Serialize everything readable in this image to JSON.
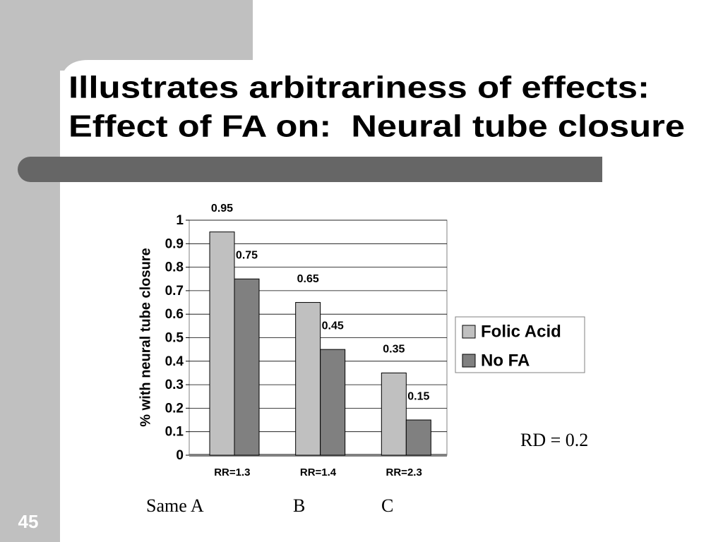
{
  "slide": {
    "title": [
      "Illustrates arbitrariness of effects:",
      "Effect of FA on:  Neural tube closure"
    ],
    "number": "45",
    "annotations": [
      "RD = 0.2",
      "Same A",
      "B",
      "C"
    ]
  },
  "chart_data": {
    "type": "bar",
    "y_label": "% with neural tube closure",
    "categories": [
      "RR=1.3",
      "RR=1.4",
      "RR=2.3"
    ],
    "series": [
      {
        "name": "Folic Acid",
        "color": "#c0c0c0",
        "values": [
          0.95,
          0.65,
          0.35
        ]
      },
      {
        "name": "No FA",
        "color": "#808080",
        "values": [
          0.75,
          0.45,
          0.15
        ]
      }
    ],
    "ylim": [
      0,
      1
    ],
    "yticks": [
      0,
      0.1,
      0.2,
      0.3,
      0.4,
      0.5,
      0.6,
      0.7,
      0.8,
      0.9,
      1
    ],
    "grid": true,
    "legend": "right"
  }
}
